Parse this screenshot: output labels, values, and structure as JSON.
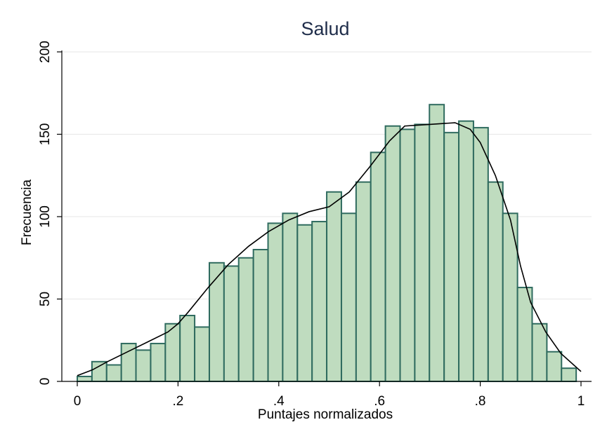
{
  "chart_data": {
    "type": "bar",
    "title": "Salud",
    "xlabel": "Puntajes normalizados",
    "ylabel": "Frecuencia",
    "xlim": [
      0,
      1
    ],
    "ylim": [
      0,
      200
    ],
    "xticks": [
      0,
      0.2,
      0.4,
      0.6,
      0.8,
      1
    ],
    "xtick_labels": [
      "0",
      ".2",
      ".4",
      ".6",
      ".8",
      "1"
    ],
    "yticks": [
      0,
      50,
      100,
      150,
      200
    ],
    "ytick_labels": [
      "0",
      "50",
      "100",
      "150",
      "200"
    ],
    "grid": true,
    "bin_width": 0.02913,
    "bins": [
      {
        "x0": 0.0,
        "count": 3
      },
      {
        "x0": 0.0291,
        "count": 12
      },
      {
        "x0": 0.0583,
        "count": 10
      },
      {
        "x0": 0.0874,
        "count": 23
      },
      {
        "x0": 0.1165,
        "count": 19
      },
      {
        "x0": 0.1457,
        "count": 23
      },
      {
        "x0": 0.1748,
        "count": 35
      },
      {
        "x0": 0.2039,
        "count": 40
      },
      {
        "x0": 0.233,
        "count": 33
      },
      {
        "x0": 0.2622,
        "count": 72
      },
      {
        "x0": 0.2913,
        "count": 70
      },
      {
        "x0": 0.3204,
        "count": 75
      },
      {
        "x0": 0.3496,
        "count": 80
      },
      {
        "x0": 0.3787,
        "count": 96
      },
      {
        "x0": 0.4078,
        "count": 102
      },
      {
        "x0": 0.437,
        "count": 95
      },
      {
        "x0": 0.4661,
        "count": 97
      },
      {
        "x0": 0.4952,
        "count": 115
      },
      {
        "x0": 0.5244,
        "count": 102
      },
      {
        "x0": 0.5535,
        "count": 121
      },
      {
        "x0": 0.5826,
        "count": 139
      },
      {
        "x0": 0.6117,
        "count": 155
      },
      {
        "x0": 0.6409,
        "count": 153
      },
      {
        "x0": 0.67,
        "count": 156
      },
      {
        "x0": 0.6991,
        "count": 168
      },
      {
        "x0": 0.7283,
        "count": 151
      },
      {
        "x0": 0.7574,
        "count": 158
      },
      {
        "x0": 0.7865,
        "count": 154
      },
      {
        "x0": 0.8157,
        "count": 121
      },
      {
        "x0": 0.8448,
        "count": 102
      },
      {
        "x0": 0.8739,
        "count": 57
      },
      {
        "x0": 0.9031,
        "count": 35
      },
      {
        "x0": 0.9322,
        "count": 18
      },
      {
        "x0": 0.9613,
        "count": 8
      }
    ],
    "density_curve": {
      "x": [
        0.0,
        0.03,
        0.06,
        0.1,
        0.14,
        0.18,
        0.2,
        0.22,
        0.26,
        0.3,
        0.34,
        0.38,
        0.42,
        0.46,
        0.5,
        0.54,
        0.58,
        0.62,
        0.65,
        0.7,
        0.75,
        0.78,
        0.8,
        0.83,
        0.86,
        0.88,
        0.9,
        0.93,
        0.96,
        1.0
      ],
      "y": [
        3.5,
        7,
        12,
        18,
        24,
        30,
        35,
        42,
        57,
        71,
        82,
        91,
        98,
        103,
        106,
        115,
        130,
        146,
        155,
        156,
        157,
        153,
        145,
        125,
        98,
        70,
        48,
        30,
        17,
        6
      ]
    },
    "colors": {
      "bar_fill": "#bfdcbf",
      "bar_stroke": "#2f6b5f",
      "density_line": "#000000",
      "title_color": "#1f2d4a"
    }
  }
}
